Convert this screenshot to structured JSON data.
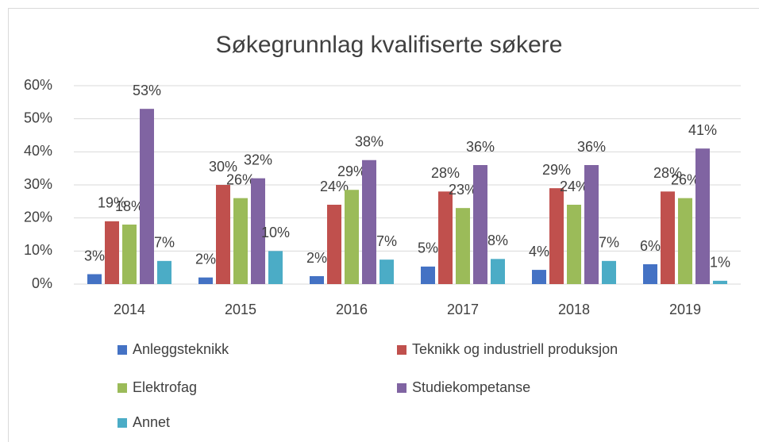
{
  "chart_data": {
    "type": "bar",
    "title": "Søkegrunnlag kvalifiserte søkere",
    "categories": [
      "2014",
      "2015",
      "2016",
      "2017",
      "2018",
      "2019"
    ],
    "series": [
      {
        "name": "Anleggsteknikk",
        "color": "#4472c4",
        "values": [
          3,
          2,
          2.4,
          5.3,
          4.3,
          6
        ],
        "value_labels": [
          "3%",
          "2%",
          "2%",
          "5%",
          "4%",
          "6%"
        ]
      },
      {
        "name": "Teknikk og industriell produksjon",
        "color": "#c0504d",
        "values": [
          19,
          30,
          24,
          28,
          29,
          28
        ],
        "value_labels": [
          "19%",
          "30%",
          "24%",
          "28%",
          "29%",
          "28%"
        ]
      },
      {
        "name": "Elektrofag",
        "color": "#9bbb59",
        "values": [
          18,
          26,
          28.5,
          23,
          24,
          26
        ],
        "value_labels": [
          "18%",
          "26%",
          "29%",
          "23%",
          "24%",
          "26%"
        ]
      },
      {
        "name": "Studiekompetanse",
        "color": "#8064a2",
        "values": [
          53,
          32,
          37.5,
          36,
          36,
          41
        ],
        "value_labels": [
          "53%",
          "32%",
          "38%",
          "36%",
          "36%",
          "41%"
        ]
      },
      {
        "name": "Annet",
        "color": "#4bacc6",
        "values": [
          7,
          10,
          7.4,
          7.6,
          7,
          1
        ],
        "value_labels": [
          "7%",
          "10%",
          "7%",
          "8%",
          "7%",
          "1%"
        ]
      }
    ],
    "ylim": [
      0,
      60
    ],
    "yticks": [
      {
        "value": 0,
        "label": "0%"
      },
      {
        "value": 10,
        "label": "10%"
      },
      {
        "value": 20,
        "label": "20%"
      },
      {
        "value": 30,
        "label": "30%"
      },
      {
        "value": 40,
        "label": "40%"
      },
      {
        "value": 50,
        "label": "50%"
      },
      {
        "value": 60,
        "label": "60%"
      }
    ],
    "grid": true,
    "legend": "bottom"
  }
}
